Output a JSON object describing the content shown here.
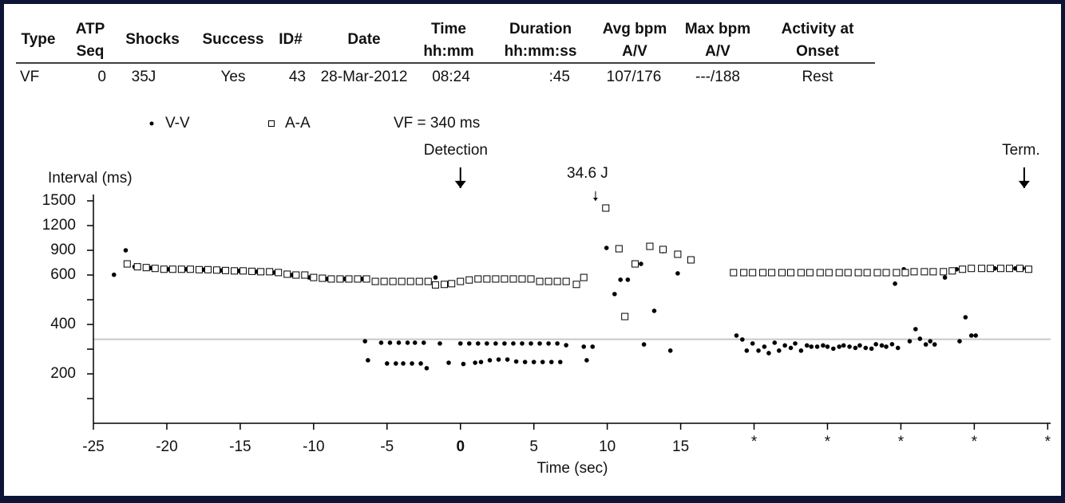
{
  "table": {
    "columns": [
      [
        "Type"
      ],
      [
        "ATP",
        "Seq"
      ],
      [
        "Shocks"
      ],
      [
        "Success"
      ],
      [
        "ID#"
      ],
      [
        "Date"
      ],
      [
        "Time",
        "hh:mm"
      ],
      [
        "Duration",
        "hh:mm:ss"
      ],
      [
        "Avg bpm",
        "A/V"
      ],
      [
        "Max bpm",
        "A/V"
      ],
      [
        "Activity at",
        "Onset"
      ]
    ],
    "rows": [
      [
        "VF",
        "0",
        "35J",
        "Yes",
        "43",
        "28-Mar-2012",
        "08:24",
        ":45",
        "107/176",
        "---/188",
        "Rest"
      ]
    ]
  },
  "chart_data": {
    "type": "scatter",
    "ylabel": "Interval (ms)",
    "xlabel": "Time (sec)",
    "yscale": "tick-spaced",
    "xlim": [
      -25,
      40.2
    ],
    "ylim": [
      0,
      1500
    ],
    "xticks": [
      -25,
      -20,
      -15,
      -10,
      -5,
      0,
      5,
      10,
      15,
      {
        "value": 20,
        "label": "*"
      },
      {
        "value": 25,
        "label": "*"
      },
      {
        "value": 30,
        "label": "*"
      },
      {
        "value": 35,
        "label": "*"
      },
      {
        "value": 40,
        "label": "*"
      }
    ],
    "yticks": [
      {
        "value": 100,
        "label": null
      },
      200,
      {
        "value": 300,
        "label": null
      },
      400,
      {
        "value": 500,
        "label": null
      },
      600,
      900,
      1200,
      1500
    ],
    "threshold": {
      "value": 340,
      "label": "VF = 340 ms",
      "color": "#c8c8c8"
    },
    "annotations": [
      {
        "text": "Detection",
        "x": 0
      },
      {
        "text": "34.6 J",
        "x": 9.2
      },
      {
        "text": "Term.",
        "x": 38.4
      }
    ],
    "series": [
      {
        "name": "V-V",
        "marker": "dot",
        "color": "#000000",
        "x": [
          -23.6,
          -22.8,
          -22.2,
          -21.1,
          -19.9,
          -18.7,
          -17.5,
          -16.3,
          -15.1,
          -13.9,
          -12.7,
          -11.5,
          -10.3,
          -9.1,
          -7.9,
          -6.7,
          -6.5,
          -6.3,
          -5.4,
          -5.0,
          -4.8,
          -4.4,
          -4.2,
          -3.9,
          -3.6,
          -3.3,
          -3.1,
          -2.7,
          -2.5,
          -2.3,
          -1.7,
          -1.4,
          -0.8,
          0.0,
          0.2,
          0.6,
          1.0,
          1.2,
          1.4,
          1.8,
          2.0,
          2.4,
          2.6,
          3.0,
          3.2,
          3.6,
          3.8,
          4.2,
          4.4,
          4.8,
          5.0,
          5.4,
          5.6,
          6.0,
          6.2,
          6.6,
          6.8,
          7.2,
          8.4,
          8.6,
          9.0,
          9.95,
          10.5,
          10.9,
          11.4,
          12.3,
          12.5,
          13.2,
          13.8,
          14.3,
          14.8,
          18.8,
          19.2,
          19.5,
          19.9,
          20.3,
          20.7,
          21.0,
          21.4,
          21.7,
          22.1,
          22.5,
          22.8,
          23.2,
          23.6,
          23.9,
          24.3,
          24.7,
          25.0,
          25.4,
          25.8,
          26.1,
          26.5,
          26.9,
          27.2,
          27.6,
          28.0,
          28.3,
          28.7,
          29.0,
          29.4,
          29.6,
          29.8,
          30.2,
          30.6,
          31.0,
          31.3,
          31.7,
          32.0,
          32.3,
          33.0,
          33.8,
          34.0,
          34.4,
          34.8,
          35.1,
          35.6,
          36.4,
          36.8,
          37.3,
          37.8,
          38.3
        ],
        "values": [
          603,
          900,
          700,
          685,
          670,
          670,
          665,
          655,
          650,
          640,
          630,
          600,
          590,
          584,
          584,
          584,
          332,
          255,
          326,
          242,
          326,
          242,
          326,
          242,
          326,
          242,
          326,
          242,
          326,
          223,
          590,
          323,
          245,
          323,
          240,
          323,
          245,
          323,
          248,
          323,
          255,
          323,
          258,
          323,
          258,
          323,
          250,
          323,
          248,
          323,
          248,
          323,
          248,
          323,
          248,
          323,
          248,
          316,
          310,
          255,
          310,
          929,
          523,
          581,
          581,
          735,
          319,
          455,
          890,
          294,
          620,
          355,
          339,
          294,
          323,
          294,
          310,
          284,
          326,
          294,
          315,
          305,
          323,
          294,
          315,
          310,
          310,
          315,
          310,
          302,
          310,
          315,
          310,
          305,
          315,
          305,
          302,
          320,
          315,
          310,
          320,
          565,
          305,
          670,
          332,
          381,
          342,
          319,
          332,
          319,
          590,
          670,
          332,
          429,
          355,
          355,
          670,
          680,
          680,
          680,
          680,
          680
        ]
      },
      {
        "name": "A-A",
        "marker": "square",
        "color": "#000000",
        "x": [
          -22.7,
          -22.0,
          -21.4,
          -20.8,
          -20.2,
          -19.6,
          -19.0,
          -18.4,
          -17.8,
          -17.2,
          -16.6,
          -16.0,
          -15.4,
          -14.8,
          -14.2,
          -13.6,
          -13.0,
          -12.4,
          -11.8,
          -11.2,
          -10.6,
          -10.0,
          -9.4,
          -8.8,
          -8.2,
          -7.6,
          -7.0,
          -6.4,
          -5.8,
          -5.2,
          -4.6,
          -4.0,
          -3.4,
          -2.8,
          -2.2,
          -1.7,
          -1.1,
          -0.6,
          0.0,
          0.6,
          1.2,
          1.8,
          2.4,
          3.0,
          3.6,
          4.2,
          4.8,
          5.4,
          6.0,
          6.6,
          7.2,
          7.9,
          8.4,
          9.9,
          10.8,
          11.2,
          11.9,
          12.9,
          13.8,
          14.8,
          15.7,
          18.6,
          19.3,
          19.9,
          20.6,
          21.2,
          21.9,
          22.5,
          23.2,
          23.8,
          24.5,
          25.1,
          25.8,
          26.4,
          27.1,
          27.7,
          28.4,
          29.0,
          29.7,
          30.3,
          30.9,
          31.6,
          32.2,
          32.9,
          33.5,
          34.2,
          34.8,
          35.5,
          36.1,
          36.8,
          37.4,
          38.1,
          38.7
        ],
        "values": [
          735,
          700,
          690,
          680,
          670,
          670,
          670,
          670,
          665,
          665,
          660,
          655,
          650,
          650,
          645,
          640,
          640,
          630,
          610,
          600,
          600,
          590,
          587,
          584,
          584,
          584,
          584,
          584,
          574,
          574,
          574,
          574,
          574,
          574,
          574,
          560,
          562,
          565,
          574,
          580,
          584,
          584,
          584,
          584,
          584,
          584,
          584,
          574,
          574,
          574,
          574,
          562,
          590,
          1413,
          919,
          432,
          735,
          948,
          910,
          852,
          784,
          629,
          629,
          629,
          629,
          629,
          629,
          629,
          629,
          629,
          629,
          629,
          629,
          629,
          629,
          629,
          629,
          629,
          629,
          629,
          640,
          640,
          640,
          640,
          650,
          670,
          680,
          680,
          680,
          680,
          680,
          680,
          670
        ]
      }
    ]
  }
}
